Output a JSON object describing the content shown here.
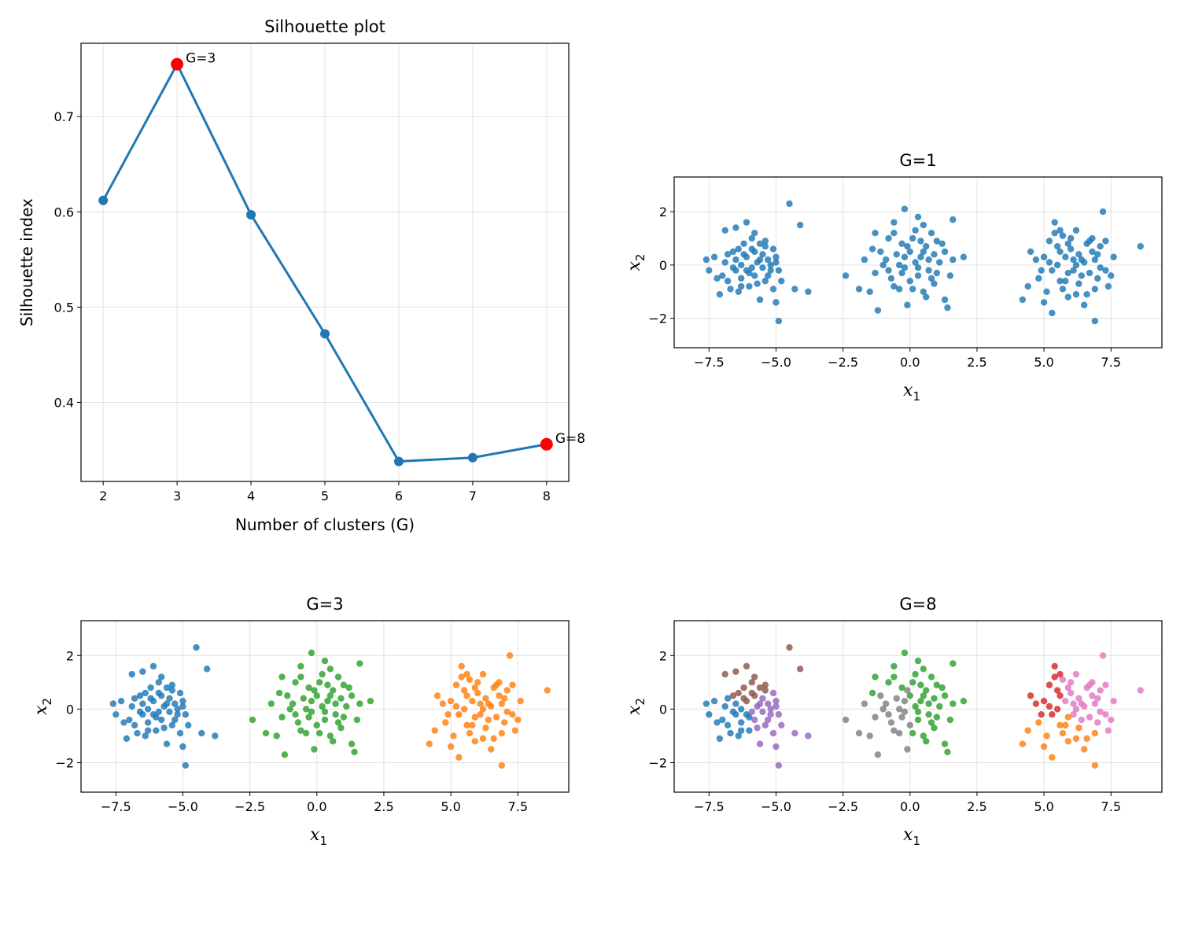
{
  "chart_data": [
    {
      "id": "silhouette",
      "type": "line",
      "title": "Silhouette plot",
      "xlabel": "Number of clusters (G)",
      "ylabel": "Silhouette index",
      "x": [
        2,
        3,
        4,
        5,
        6,
        7,
        8
      ],
      "y": [
        0.612,
        0.755,
        0.597,
        0.472,
        0.338,
        0.342,
        0.356
      ],
      "xlim": [
        1.7,
        8.3
      ],
      "ylim": [
        0.317,
        0.777
      ],
      "xticks": [
        2,
        3,
        4,
        5,
        6,
        7,
        8
      ],
      "yticks": [
        0.4,
        0.5,
        0.6,
        0.7
      ],
      "line_color": "#1f77b4",
      "highlight_color": "#ff0000",
      "highlights": [
        {
          "x": 3,
          "y": 0.755,
          "label": "G=3"
        },
        {
          "x": 8,
          "y": 0.356,
          "label": "G=8"
        }
      ],
      "grid": true
    },
    {
      "id": "g1",
      "type": "scatter",
      "title": "G=1",
      "xlabel": "x1",
      "ylabel": "x2",
      "xlim": [
        -8.8,
        9.4
      ],
      "ylim": [
        -3.1,
        3.3
      ],
      "xticks": [
        -7.5,
        -5.0,
        -2.5,
        0.0,
        2.5,
        5.0,
        7.5
      ],
      "xtick_labels": [
        "−7.5",
        "−5.0",
        "−2.5",
        "0.0",
        "2.5",
        "5.0",
        "7.5"
      ],
      "yticks": [
        -2,
        0,
        2
      ],
      "ytick_labels": [
        "−2",
        "0",
        "2"
      ],
      "grid": true,
      "colors": [
        "#1f77b4"
      ]
    },
    {
      "id": "g3",
      "type": "scatter",
      "title": "G=3",
      "xlabel": "x1",
      "ylabel": "x2",
      "xlim": [
        -8.8,
        9.4
      ],
      "ylim": [
        -3.1,
        3.3
      ],
      "xticks": [
        -7.5,
        -5.0,
        -2.5,
        0.0,
        2.5,
        5.0,
        7.5
      ],
      "xtick_labels": [
        "−7.5",
        "−5.0",
        "−2.5",
        "0.0",
        "2.5",
        "5.0",
        "7.5"
      ],
      "yticks": [
        -2,
        0,
        2
      ],
      "ytick_labels": [
        "−2",
        "0",
        "2"
      ],
      "grid": true,
      "colors": [
        "#1f77b4",
        "#2ca02c",
        "#ff7f0e"
      ]
    },
    {
      "id": "g8",
      "type": "scatter",
      "title": "G=8",
      "xlabel": "x1",
      "ylabel": "x2",
      "xlim": [
        -8.8,
        9.4
      ],
      "ylim": [
        -3.1,
        3.3
      ],
      "xticks": [
        -7.5,
        -5.0,
        -2.5,
        0.0,
        2.5,
        5.0,
        7.5
      ],
      "xtick_labels": [
        "−7.5",
        "−5.0",
        "−2.5",
        "0.0",
        "2.5",
        "5.0",
        "7.5"
      ],
      "yticks": [
        -2,
        0,
        2
      ],
      "ytick_labels": [
        "−2",
        "0",
        "2"
      ],
      "grid": true,
      "colors": [
        "#1f77b4",
        "#ff7f0e",
        "#2ca02c",
        "#d62728",
        "#9467bd",
        "#8c564b",
        "#e377c2",
        "#7f7f7f"
      ]
    }
  ],
  "scatter_points": [
    [
      -7.6,
      0.2
    ],
    [
      -7.3,
      0.3
    ],
    [
      -7.5,
      -0.2
    ],
    [
      -7.0,
      -0.4
    ],
    [
      -6.9,
      0.1
    ],
    [
      -6.8,
      -0.6
    ],
    [
      -6.6,
      0.5
    ],
    [
      -6.5,
      -0.2
    ],
    [
      -6.4,
      -1.0
    ],
    [
      -6.3,
      0.0
    ],
    [
      -6.2,
      0.8
    ],
    [
      -6.1,
      0.3
    ],
    [
      -6.0,
      -0.3
    ],
    [
      -5.9,
      1.0
    ],
    [
      -5.8,
      0.5
    ],
    [
      -5.7,
      -0.7
    ],
    [
      -5.6,
      0.2
    ],
    [
      -5.5,
      -0.1
    ],
    [
      -5.4,
      0.7
    ],
    [
      -5.3,
      -0.4
    ],
    [
      -5.2,
      0.0
    ],
    [
      -5.1,
      -0.9
    ],
    [
      -5.0,
      0.3
    ],
    [
      -4.9,
      -0.2
    ],
    [
      -4.8,
      -0.6
    ],
    [
      -4.5,
      2.3
    ],
    [
      -4.3,
      -0.9
    ],
    [
      -4.1,
      1.5
    ],
    [
      -3.8,
      -1.0
    ],
    [
      -4.9,
      -2.1
    ],
    [
      -6.7,
      -0.9
    ],
    [
      -7.1,
      -1.1
    ],
    [
      -6.9,
      1.3
    ],
    [
      -6.5,
      1.4
    ],
    [
      -6.1,
      1.6
    ],
    [
      -5.8,
      1.2
    ],
    [
      -5.4,
      0.9
    ],
    [
      -5.1,
      0.6
    ],
    [
      -5.0,
      -1.4
    ],
    [
      -5.6,
      -1.3
    ],
    [
      -6.0,
      -0.8
    ],
    [
      -6.3,
      -0.5
    ],
    [
      -6.6,
      -0.1
    ],
    [
      -6.2,
      0.4
    ],
    [
      -5.9,
      -0.1
    ],
    [
      -5.7,
      0.1
    ],
    [
      -5.5,
      0.4
    ],
    [
      -5.3,
      0.2
    ],
    [
      -6.4,
      0.6
    ],
    [
      -6.8,
      0.4
    ],
    [
      -7.2,
      -0.5
    ],
    [
      -5.2,
      -0.2
    ],
    [
      -5.9,
      0.6
    ],
    [
      -6.1,
      -0.2
    ],
    [
      -5.6,
      0.8
    ],
    [
      -5.8,
      -0.4
    ],
    [
      -6.5,
      0.2
    ],
    [
      -6.3,
      -0.8
    ],
    [
      -5.4,
      -0.6
    ],
    [
      -5.0,
      0.1
    ],
    [
      -0.2,
      2.1
    ],
    [
      0.3,
      1.8
    ],
    [
      -0.6,
      1.6
    ],
    [
      0.5,
      1.5
    ],
    [
      1.6,
      1.7
    ],
    [
      -1.3,
      1.2
    ],
    [
      0.8,
      1.2
    ],
    [
      -0.8,
      1.0
    ],
    [
      0.1,
      1.0
    ],
    [
      1.0,
      0.9
    ],
    [
      -0.3,
      0.8
    ],
    [
      0.6,
      0.7
    ],
    [
      -1.1,
      0.5
    ],
    [
      0.0,
      0.5
    ],
    [
      1.3,
      0.5
    ],
    [
      -0.5,
      0.4
    ],
    [
      0.4,
      0.3
    ],
    [
      2.0,
      0.3
    ],
    [
      -1.7,
      0.2
    ],
    [
      -0.9,
      0.2
    ],
    [
      0.2,
      0.1
    ],
    [
      1.1,
      0.1
    ],
    [
      -0.2,
      -0.1
    ],
    [
      0.7,
      -0.2
    ],
    [
      -1.3,
      -0.3
    ],
    [
      0.3,
      -0.4
    ],
    [
      1.5,
      -0.4
    ],
    [
      -0.7,
      -0.5
    ],
    [
      0.0,
      -0.6
    ],
    [
      0.9,
      -0.7
    ],
    [
      -1.9,
      -0.9
    ],
    [
      -0.4,
      -0.9
    ],
    [
      0.5,
      -1.0
    ],
    [
      1.3,
      -1.3
    ],
    [
      -1.2,
      -1.7
    ],
    [
      -0.1,
      -1.5
    ],
    [
      0.6,
      -1.2
    ],
    [
      -2.4,
      -0.4
    ],
    [
      -1.5,
      -1.0
    ],
    [
      1.4,
      -1.6
    ],
    [
      -0.6,
      1.2
    ],
    [
      0.2,
      1.3
    ],
    [
      0.9,
      0.4
    ],
    [
      -0.2,
      0.3
    ],
    [
      0.4,
      0.9
    ],
    [
      -1.0,
      0.0
    ],
    [
      0.7,
      0.2
    ],
    [
      -0.3,
      -0.3
    ],
    [
      0.1,
      -0.9
    ],
    [
      1.0,
      -0.3
    ],
    [
      -0.8,
      -0.2
    ],
    [
      0.5,
      0.5
    ],
    [
      -0.4,
      0.0
    ],
    [
      1.2,
      0.8
    ],
    [
      -1.4,
      0.6
    ],
    [
      0.8,
      -0.5
    ],
    [
      -0.1,
      0.7
    ],
    [
      0.3,
      -0.1
    ],
    [
      -0.6,
      -0.8
    ],
    [
      1.6,
      0.2
    ],
    [
      4.2,
      -1.3
    ],
    [
      4.5,
      0.5
    ],
    [
      4.8,
      -0.5
    ],
    [
      5.0,
      0.3
    ],
    [
      5.1,
      -1.0
    ],
    [
      5.2,
      0.9
    ],
    [
      5.3,
      -1.8
    ],
    [
      5.4,
      1.6
    ],
    [
      5.5,
      0.0
    ],
    [
      5.6,
      -0.6
    ],
    [
      5.7,
      1.1
    ],
    [
      5.8,
      0.3
    ],
    [
      5.9,
      -1.2
    ],
    [
      6.0,
      0.6
    ],
    [
      6.1,
      -0.2
    ],
    [
      6.2,
      1.3
    ],
    [
      6.3,
      -0.7
    ],
    [
      6.4,
      0.2
    ],
    [
      6.5,
      -1.5
    ],
    [
      6.6,
      0.8
    ],
    [
      6.7,
      -0.3
    ],
    [
      6.8,
      1.0
    ],
    [
      6.9,
      -0.9
    ],
    [
      7.0,
      0.4
    ],
    [
      7.1,
      -0.1
    ],
    [
      7.2,
      2.0
    ],
    [
      7.3,
      0.9
    ],
    [
      7.5,
      -0.4
    ],
    [
      7.6,
      0.3
    ],
    [
      8.6,
      0.7
    ],
    [
      4.4,
      -0.8
    ],
    [
      4.7,
      0.2
    ],
    [
      5.0,
      -1.4
    ],
    [
      5.4,
      1.2
    ],
    [
      5.6,
      0.5
    ],
    [
      5.9,
      -0.3
    ],
    [
      6.2,
      0.0
    ],
    [
      6.6,
      -1.1
    ],
    [
      6.9,
      -2.1
    ],
    [
      7.4,
      -0.8
    ],
    [
      5.3,
      -0.2
    ],
    [
      5.7,
      -0.9
    ],
    [
      6.0,
      1.0
    ],
    [
      6.3,
      0.4
    ],
    [
      6.5,
      0.1
    ],
    [
      6.8,
      0.5
    ],
    [
      7.1,
      0.7
    ],
    [
      5.8,
      -0.6
    ],
    [
      6.1,
      0.2
    ],
    [
      6.4,
      -0.4
    ],
    [
      5.5,
      0.7
    ],
    [
      5.2,
      0.1
    ],
    [
      6.7,
      0.9
    ],
    [
      7.0,
      -0.5
    ],
    [
      6.2,
      -1.1
    ],
    [
      5.6,
      1.3
    ],
    [
      4.9,
      -0.2
    ],
    [
      6.9,
      0.2
    ],
    [
      7.3,
      -0.2
    ],
    [
      5.9,
      0.8
    ]
  ],
  "labels_g3": [
    0,
    0,
    0,
    0,
    0,
    0,
    0,
    0,
    0,
    0,
    0,
    0,
    0,
    0,
    0,
    0,
    0,
    0,
    0,
    0,
    0,
    0,
    0,
    0,
    0,
    0,
    0,
    0,
    0,
    0,
    0,
    0,
    0,
    0,
    0,
    0,
    0,
    0,
    0,
    0,
    0,
    0,
    0,
    0,
    0,
    0,
    0,
    0,
    0,
    0,
    0,
    0,
    0,
    0,
    0,
    0,
    0,
    0,
    0,
    0,
    1,
    1,
    1,
    1,
    1,
    1,
    1,
    1,
    1,
    1,
    1,
    1,
    1,
    1,
    1,
    1,
    1,
    1,
    1,
    1,
    1,
    1,
    1,
    1,
    1,
    1,
    1,
    1,
    1,
    1,
    1,
    1,
    1,
    1,
    1,
    1,
    1,
    1,
    1,
    1,
    1,
    1,
    1,
    1,
    1,
    1,
    1,
    1,
    1,
    1,
    1,
    1,
    1,
    1,
    1,
    1,
    1,
    1,
    1,
    1,
    2,
    2,
    2,
    2,
    2,
    2,
    2,
    2,
    2,
    2,
    2,
    2,
    2,
    2,
    2,
    2,
    2,
    2,
    2,
    2,
    2,
    2,
    2,
    2,
    2,
    2,
    2,
    2,
    2,
    2,
    2,
    2,
    2,
    2,
    2,
    2,
    2,
    2,
    2,
    2,
    2,
    2,
    2,
    2,
    2,
    2,
    2,
    2,
    2,
    2,
    2,
    2,
    2,
    2,
    2,
    2,
    2,
    2,
    2,
    2
  ],
  "labels_g8": [
    0,
    0,
    0,
    0,
    0,
    0,
    5,
    0,
    0,
    0,
    5,
    5,
    0,
    5,
    5,
    4,
    4,
    4,
    5,
    4,
    4,
    4,
    4,
    4,
    4,
    5,
    4,
    5,
    4,
    4,
    0,
    0,
    5,
    5,
    5,
    5,
    5,
    4,
    4,
    4,
    0,
    0,
    0,
    5,
    4,
    4,
    4,
    4,
    5,
    0,
    0,
    4,
    5,
    0,
    5,
    4,
    0,
    0,
    4,
    4,
    2,
    2,
    2,
    2,
    2,
    2,
    2,
    2,
    2,
    2,
    2,
    2,
    7,
    2,
    2,
    7,
    2,
    2,
    7,
    7,
    2,
    2,
    7,
    2,
    7,
    2,
    2,
    7,
    7,
    2,
    7,
    7,
    2,
    2,
    7,
    7,
    2,
    7,
    7,
    2,
    2,
    2,
    2,
    7,
    2,
    7,
    2,
    7,
    2,
    2,
    7,
    2,
    7,
    2,
    2,
    2,
    7,
    2,
    7,
    2,
    1,
    3,
    1,
    3,
    1,
    3,
    1,
    3,
    3,
    1,
    6,
    6,
    1,
    6,
    6,
    6,
    1,
    6,
    1,
    6,
    6,
    6,
    1,
    6,
    6,
    6,
    6,
    6,
    6,
    6,
    1,
    3,
    1,
    3,
    3,
    1,
    6,
    1,
    1,
    6,
    3,
    1,
    6,
    6,
    6,
    6,
    6,
    1,
    6,
    6,
    3,
    3,
    6,
    6,
    1,
    3,
    3,
    6,
    6,
    6
  ]
}
